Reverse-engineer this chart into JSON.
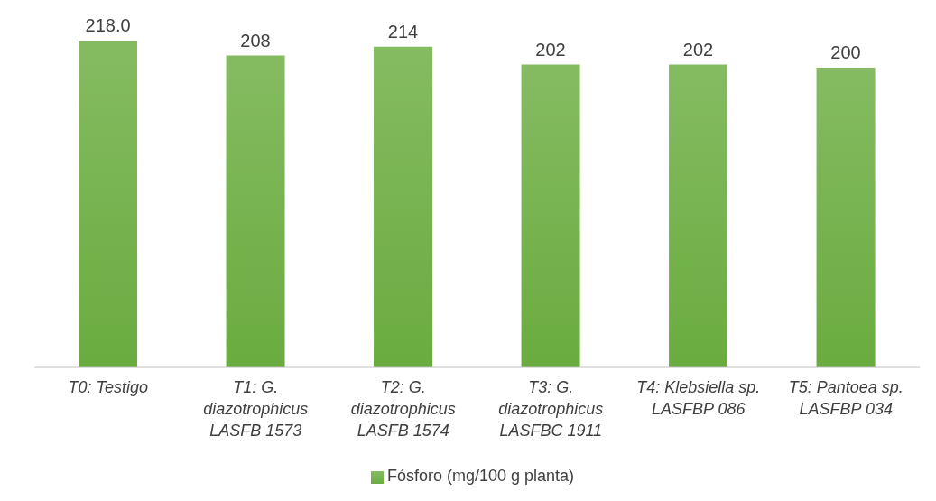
{
  "chart_data": {
    "type": "bar",
    "categories": [
      "T0: Testigo",
      "T1: G. diazotrophicus LASFB 1573",
      "T2: G. diazotrophicus LASFB 1574",
      "T3: G. diazotrophicus LASFBC 1911",
      "T4: Klebsiella sp. LASFBP 086",
      "T5: Pantoea sp. LASFBP 034"
    ],
    "series": [
      {
        "name": "Fósforo (mg/100 g planta)",
        "color": "#6aac3f",
        "values": [
          218,
          208,
          214,
          202,
          202,
          200
        ],
        "value_labels": [
          "218.0",
          "208",
          "214",
          "202",
          "202",
          "200"
        ]
      }
    ],
    "tick_labels": "x",
    "legend": "bottom",
    "grid": false
  }
}
